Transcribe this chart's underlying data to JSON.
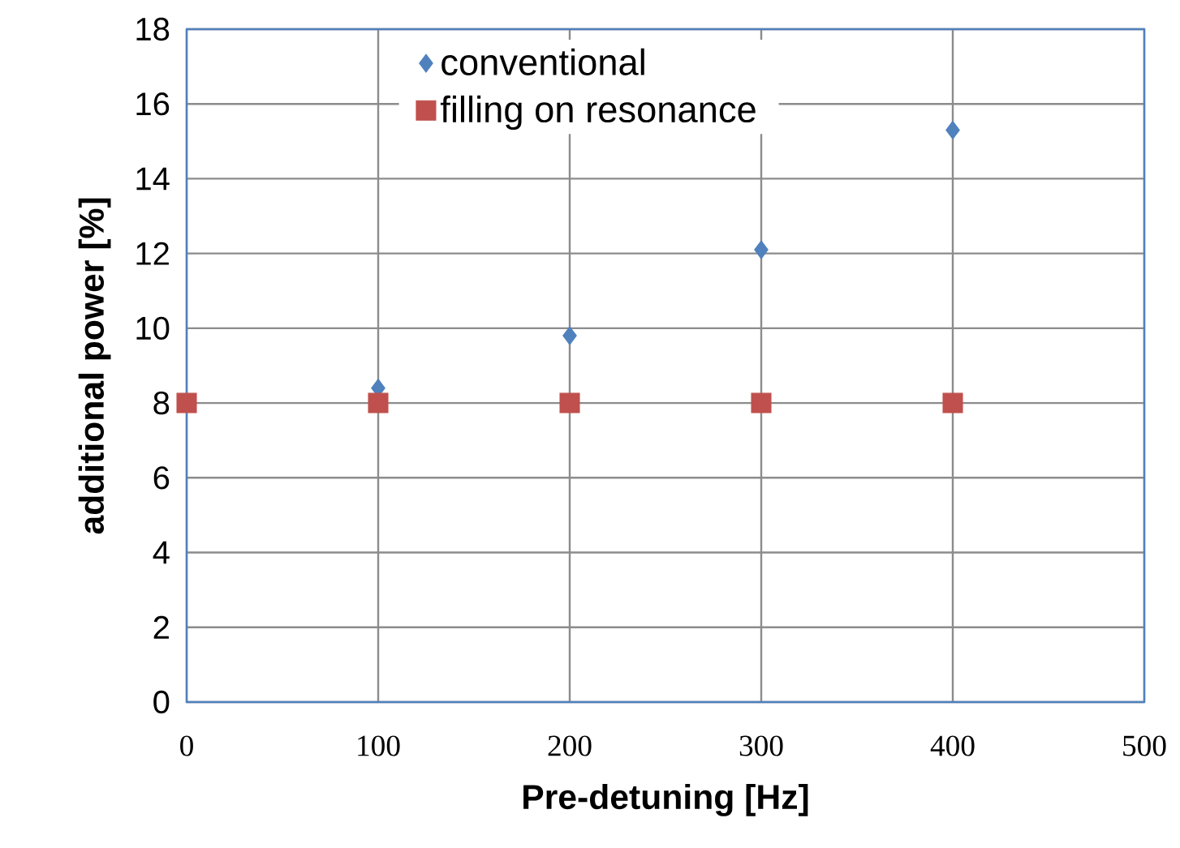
{
  "chart_data": {
    "type": "scatter",
    "xlabel": "Pre-detuning [Hz]",
    "ylabel": "additional power  [%]",
    "xlim": [
      0,
      500
    ],
    "ylim": [
      0,
      18
    ],
    "xticks": [
      0,
      100,
      200,
      300,
      400,
      500
    ],
    "yticks": [
      0,
      2,
      4,
      6,
      8,
      10,
      12,
      14,
      16,
      18
    ],
    "grid": true,
    "legend": "top",
    "series": [
      {
        "name": "conventional",
        "color": "#4f81bd",
        "marker": "diamond",
        "x": [
          100,
          200,
          300,
          400
        ],
        "values": [
          8.4,
          9.8,
          12.1,
          15.3
        ]
      },
      {
        "name": "filling on resonance",
        "color": "#c0504d",
        "marker": "square",
        "x": [
          0,
          100,
          200,
          300,
          400
        ],
        "values": [
          8,
          8,
          8,
          8,
          8
        ]
      }
    ]
  }
}
